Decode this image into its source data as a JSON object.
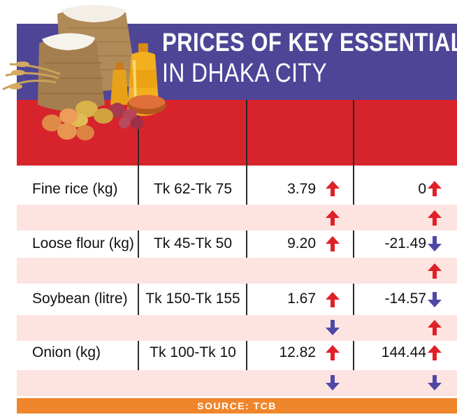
{
  "header": {
    "title_line1": "PRICES OF KEY ESSENTIALS",
    "title_line2": "IN DHAKA CITY"
  },
  "rows": [
    {
      "item": "Fine rice (kg)",
      "range": "Tk 62-Tk 75",
      "change1": "3.79",
      "change1_dir": "up",
      "change2": "0",
      "change2_dir": "up",
      "sub1_dir": "up",
      "sub2_dir": "up"
    },
    {
      "item": "Loose flour (kg)",
      "range": "Tk 45-Tk 50",
      "change1": "9.20",
      "change1_dir": "up",
      "change2": "-21.49",
      "change2_dir": "down",
      "sub1_dir": "",
      "sub2_dir": "up"
    },
    {
      "item": "Soybean (litre)",
      "range": "Tk 150-Tk 155",
      "change1": "1.67",
      "change1_dir": "up",
      "change2": "-14.57",
      "change2_dir": "down",
      "sub1_dir": "down",
      "sub2_dir": "up"
    },
    {
      "item": "Onion (kg)",
      "range": "Tk 100-Tk 10",
      "change1": "12.82",
      "change1_dir": "up",
      "change2": "144.44",
      "change2_dir": "up",
      "sub1_dir": "down",
      "sub2_dir": "down"
    }
  ],
  "footer": {
    "source": "SOURCE: TCB"
  },
  "colors": {
    "banner": "#4e4597",
    "header_red": "#d7242c",
    "band_pink": "#fde4e1",
    "up_arrow": "#e02028",
    "down_arrow": "#4f48a8",
    "source_bar": "#f0862b"
  },
  "illustration": {
    "items": [
      "rice-sack-icon",
      "flour-sack-icon",
      "oil-bottle-icon",
      "wheat-icon",
      "eggs-icon",
      "onion-icon",
      "potato-icon",
      "lentils-icon"
    ]
  }
}
